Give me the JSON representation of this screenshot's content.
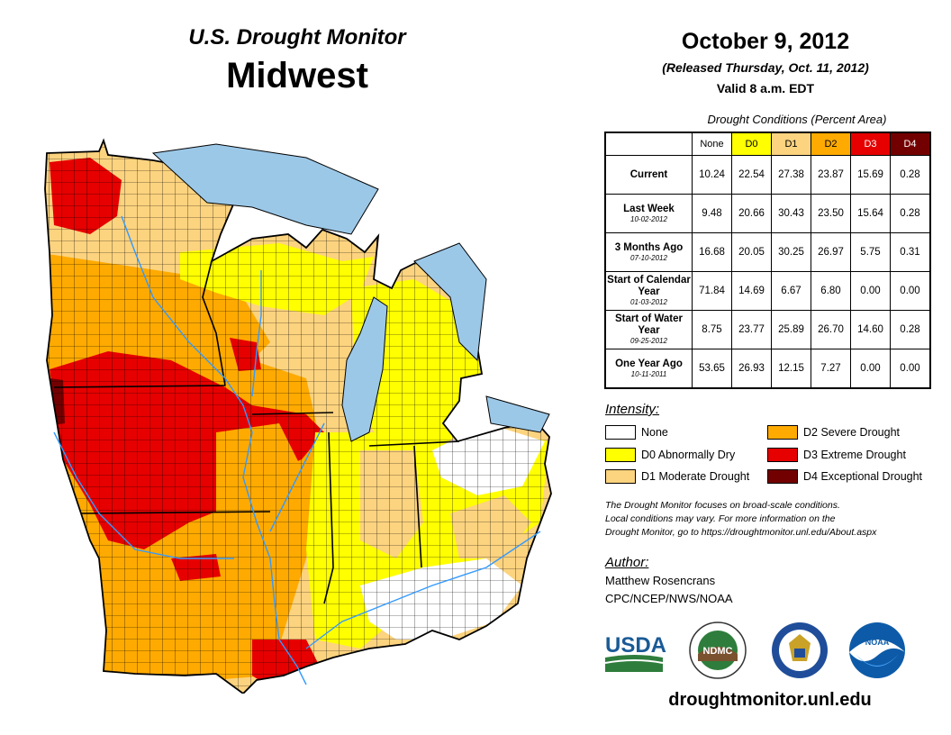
{
  "header": {
    "title": "U.S. Drought Monitor",
    "region": "Midwest",
    "date": "October 9, 2012",
    "released": "(Released Thursday, Oct. 11, 2012)",
    "valid": "Valid 8 a.m. EDT"
  },
  "table": {
    "caption": "Drought Conditions (Percent Area)",
    "columns": [
      "None",
      "D0",
      "D1",
      "D2",
      "D3",
      "D4"
    ],
    "column_colors": [
      "#ffffff",
      "#ffff00",
      "#fcd37f",
      "#ffaa00",
      "#e60000",
      "#730000"
    ],
    "rows": [
      {
        "label": "Current",
        "date": "",
        "values": [
          "10.24",
          "22.54",
          "27.38",
          "23.87",
          "15.69",
          "0.28"
        ]
      },
      {
        "label": "Last Week",
        "date": "10-02-2012",
        "values": [
          "9.48",
          "20.66",
          "30.43",
          "23.50",
          "15.64",
          "0.28"
        ]
      },
      {
        "label": "3 Months Ago",
        "date": "07-10-2012",
        "values": [
          "16.68",
          "20.05",
          "30.25",
          "26.97",
          "5.75",
          "0.31"
        ]
      },
      {
        "label": "Start of Calendar Year",
        "date": "01-03-2012",
        "values": [
          "71.84",
          "14.69",
          "6.67",
          "6.80",
          "0.00",
          "0.00"
        ]
      },
      {
        "label": "Start of Water Year",
        "date": "09-25-2012",
        "values": [
          "8.75",
          "23.77",
          "25.89",
          "26.70",
          "14.60",
          "0.28"
        ]
      },
      {
        "label": "One Year Ago",
        "date": "10-11-2011",
        "values": [
          "53.65",
          "26.93",
          "12.15",
          "7.27",
          "0.00",
          "0.00"
        ]
      }
    ]
  },
  "legend": {
    "title": "Intensity:",
    "items": [
      {
        "label": "None",
        "color": "#ffffff"
      },
      {
        "label": "D0 Abnormally Dry",
        "color": "#ffff00"
      },
      {
        "label": "D1 Moderate Drought",
        "color": "#fcd37f"
      },
      {
        "label": "D2 Severe Drought",
        "color": "#ffaa00"
      },
      {
        "label": "D3 Extreme Drought",
        "color": "#e60000"
      },
      {
        "label": "D4 Exceptional Drought",
        "color": "#730000"
      }
    ]
  },
  "note": {
    "line1": "The Drought Monitor focuses on broad-scale conditions.",
    "line2": "Local conditions may vary. For more information on the",
    "line3": "Drought Monitor, go to https://droughtmonitor.unl.edu/About.aspx"
  },
  "author": {
    "title": "Author:",
    "name": "Matthew Rosencrans",
    "org": "CPC/NCEP/NWS/NOAA"
  },
  "logos": {
    "usda": "USDA",
    "ndmc": "NDMC",
    "noaa": "NOAA"
  },
  "site": "droughtmonitor.unl.edu",
  "map_colors": {
    "none": "#ffffff",
    "d0": "#ffff00",
    "d1": "#fcd37f",
    "d2": "#ffaa00",
    "d3": "#e60000",
    "d4": "#730000",
    "water": "#9cc8e8",
    "river": "#3399ff"
  }
}
